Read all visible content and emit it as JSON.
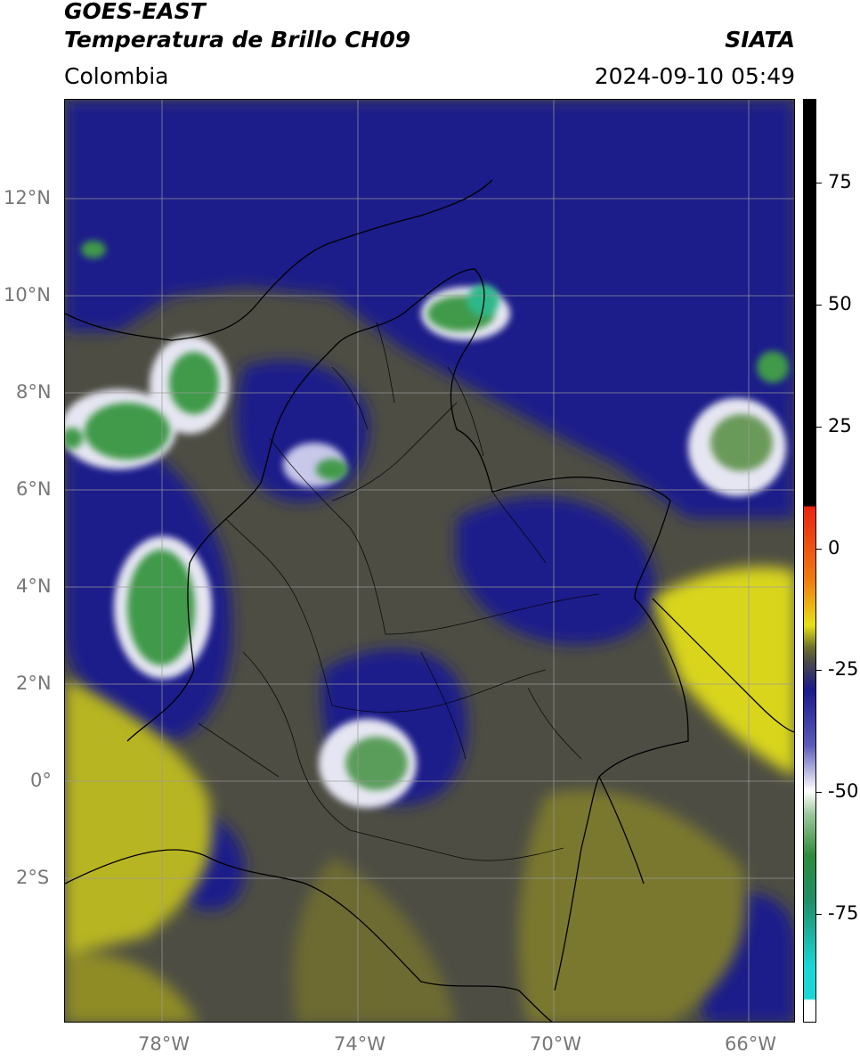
{
  "header": {
    "title_line1": "GOES-EAST",
    "title_line2": "Temperatura de Brillo CH09",
    "region": "Colombia",
    "source": "SIATA",
    "datetime": "2024-09-10 05:49"
  },
  "axes": {
    "lat_labels": [
      "12°N",
      "10°N",
      "8°N",
      "6°N",
      "4°N",
      "2°N",
      "0°",
      "2°S"
    ],
    "lon_labels": [
      "78°W",
      "74°W",
      "70°W",
      "66°W"
    ]
  },
  "colorbar": {
    "tick_labels": [
      "75",
      "50",
      "25",
      "0",
      "-25",
      "-50",
      "-75"
    ],
    "colors": {
      "black": "#000000",
      "red": "#e8230f",
      "yellow": "#e6e114",
      "olive": "#6b6b2e",
      "gray": "#4a4a4a",
      "navy": "#1a1a8c",
      "white": "#ffffff",
      "green": "#2e8b3a",
      "cyan": "#1ad6d6"
    }
  }
}
